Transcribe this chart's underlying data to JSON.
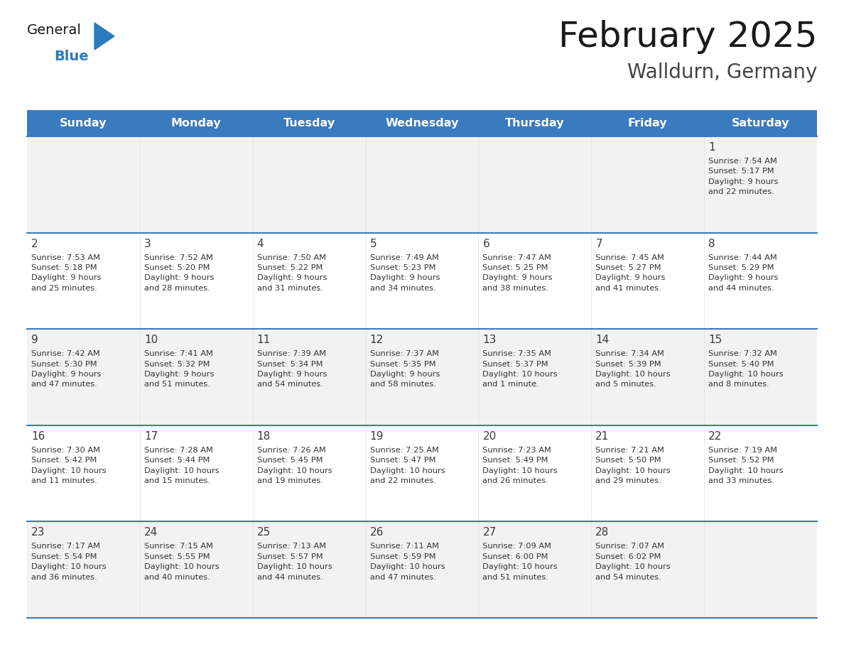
{
  "title": "February 2025",
  "subtitle": "Walldurn, Germany",
  "header_color": "#3a7bbf",
  "header_text_color": "#ffffff",
  "row_bg_even": "#f2f2f2",
  "row_bg_odd": "#ffffff",
  "day_number_color": "#3a3a3a",
  "text_color": "#333333",
  "line_color": "#3a7bbf",
  "days_of_week": [
    "Sunday",
    "Monday",
    "Tuesday",
    "Wednesday",
    "Thursday",
    "Friday",
    "Saturday"
  ],
  "logo_color1": "#1a1a1a",
  "logo_color2": "#2b7bbf",
  "logo_tri_color": "#2b7bbf",
  "weeks": [
    [
      {
        "day": null,
        "info": null
      },
      {
        "day": null,
        "info": null
      },
      {
        "day": null,
        "info": null
      },
      {
        "day": null,
        "info": null
      },
      {
        "day": null,
        "info": null
      },
      {
        "day": null,
        "info": null
      },
      {
        "day": 1,
        "info": "Sunrise: 7:54 AM\nSunset: 5:17 PM\nDaylight: 9 hours\nand 22 minutes."
      }
    ],
    [
      {
        "day": 2,
        "info": "Sunrise: 7:53 AM\nSunset: 5:18 PM\nDaylight: 9 hours\nand 25 minutes."
      },
      {
        "day": 3,
        "info": "Sunrise: 7:52 AM\nSunset: 5:20 PM\nDaylight: 9 hours\nand 28 minutes."
      },
      {
        "day": 4,
        "info": "Sunrise: 7:50 AM\nSunset: 5:22 PM\nDaylight: 9 hours\nand 31 minutes."
      },
      {
        "day": 5,
        "info": "Sunrise: 7:49 AM\nSunset: 5:23 PM\nDaylight: 9 hours\nand 34 minutes."
      },
      {
        "day": 6,
        "info": "Sunrise: 7:47 AM\nSunset: 5:25 PM\nDaylight: 9 hours\nand 38 minutes."
      },
      {
        "day": 7,
        "info": "Sunrise: 7:45 AM\nSunset: 5:27 PM\nDaylight: 9 hours\nand 41 minutes."
      },
      {
        "day": 8,
        "info": "Sunrise: 7:44 AM\nSunset: 5:29 PM\nDaylight: 9 hours\nand 44 minutes."
      }
    ],
    [
      {
        "day": 9,
        "info": "Sunrise: 7:42 AM\nSunset: 5:30 PM\nDaylight: 9 hours\nand 47 minutes."
      },
      {
        "day": 10,
        "info": "Sunrise: 7:41 AM\nSunset: 5:32 PM\nDaylight: 9 hours\nand 51 minutes."
      },
      {
        "day": 11,
        "info": "Sunrise: 7:39 AM\nSunset: 5:34 PM\nDaylight: 9 hours\nand 54 minutes."
      },
      {
        "day": 12,
        "info": "Sunrise: 7:37 AM\nSunset: 5:35 PM\nDaylight: 9 hours\nand 58 minutes."
      },
      {
        "day": 13,
        "info": "Sunrise: 7:35 AM\nSunset: 5:37 PM\nDaylight: 10 hours\nand 1 minute."
      },
      {
        "day": 14,
        "info": "Sunrise: 7:34 AM\nSunset: 5:39 PM\nDaylight: 10 hours\nand 5 minutes."
      },
      {
        "day": 15,
        "info": "Sunrise: 7:32 AM\nSunset: 5:40 PM\nDaylight: 10 hours\nand 8 minutes."
      }
    ],
    [
      {
        "day": 16,
        "info": "Sunrise: 7:30 AM\nSunset: 5:42 PM\nDaylight: 10 hours\nand 11 minutes."
      },
      {
        "day": 17,
        "info": "Sunrise: 7:28 AM\nSunset: 5:44 PM\nDaylight: 10 hours\nand 15 minutes."
      },
      {
        "day": 18,
        "info": "Sunrise: 7:26 AM\nSunset: 5:45 PM\nDaylight: 10 hours\nand 19 minutes."
      },
      {
        "day": 19,
        "info": "Sunrise: 7:25 AM\nSunset: 5:47 PM\nDaylight: 10 hours\nand 22 minutes."
      },
      {
        "day": 20,
        "info": "Sunrise: 7:23 AM\nSunset: 5:49 PM\nDaylight: 10 hours\nand 26 minutes."
      },
      {
        "day": 21,
        "info": "Sunrise: 7:21 AM\nSunset: 5:50 PM\nDaylight: 10 hours\nand 29 minutes."
      },
      {
        "day": 22,
        "info": "Sunrise: 7:19 AM\nSunset: 5:52 PM\nDaylight: 10 hours\nand 33 minutes."
      }
    ],
    [
      {
        "day": 23,
        "info": "Sunrise: 7:17 AM\nSunset: 5:54 PM\nDaylight: 10 hours\nand 36 minutes."
      },
      {
        "day": 24,
        "info": "Sunrise: 7:15 AM\nSunset: 5:55 PM\nDaylight: 10 hours\nand 40 minutes."
      },
      {
        "day": 25,
        "info": "Sunrise: 7:13 AM\nSunset: 5:57 PM\nDaylight: 10 hours\nand 44 minutes."
      },
      {
        "day": 26,
        "info": "Sunrise: 7:11 AM\nSunset: 5:59 PM\nDaylight: 10 hours\nand 47 minutes."
      },
      {
        "day": 27,
        "info": "Sunrise: 7:09 AM\nSunset: 6:00 PM\nDaylight: 10 hours\nand 51 minutes."
      },
      {
        "day": 28,
        "info": "Sunrise: 7:07 AM\nSunset: 6:02 PM\nDaylight: 10 hours\nand 54 minutes."
      },
      {
        "day": null,
        "info": null
      }
    ]
  ]
}
